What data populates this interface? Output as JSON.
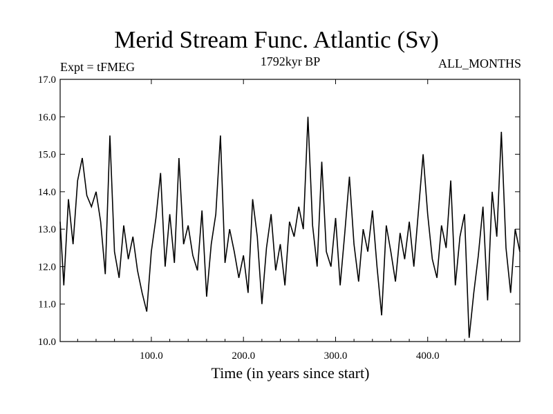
{
  "chart_data": {
    "type": "line",
    "title": "Merid Stream Func. Atlantic (Sv)",
    "subtitle_left": "Expt = tFMEG",
    "subtitle_center": "1792kyr BP",
    "subtitle_right": "ALL_MONTHS",
    "xlabel": "Time (in years since start)",
    "ylabel": "",
    "xlim": [
      1,
      500
    ],
    "ylim": [
      10.0,
      17.0
    ],
    "xticks": [
      100,
      200,
      300,
      400
    ],
    "xtick_labels": [
      "100.0",
      "200.0",
      "300.0",
      "400.0"
    ],
    "yticks": [
      10,
      11,
      12,
      13,
      14,
      15,
      16,
      17
    ],
    "ytick_labels": [
      "10.0",
      "11.0",
      "12.0",
      "13.0",
      "14.0",
      "15.0",
      "16.0",
      "17.0"
    ],
    "series": [
      {
        "name": "Merid Stream Func. Atlantic",
        "color": "#000000",
        "x": [
          1,
          5,
          10,
          15,
          20,
          25,
          30,
          35,
          40,
          45,
          50,
          55,
          60,
          65,
          70,
          75,
          80,
          85,
          90,
          95,
          100,
          105,
          110,
          115,
          120,
          125,
          130,
          135,
          140,
          145,
          150,
          155,
          160,
          165,
          170,
          175,
          180,
          185,
          190,
          195,
          200,
          205,
          210,
          215,
          220,
          225,
          230,
          235,
          240,
          245,
          250,
          255,
          260,
          265,
          270,
          275,
          280,
          285,
          290,
          295,
          300,
          305,
          310,
          315,
          320,
          325,
          330,
          335,
          340,
          345,
          350,
          355,
          360,
          365,
          370,
          375,
          380,
          385,
          390,
          395,
          400,
          405,
          410,
          415,
          420,
          425,
          430,
          435,
          440,
          445,
          450,
          455,
          460,
          465,
          470,
          475,
          480,
          485,
          490,
          495,
          500
        ],
        "values": [
          13.2,
          11.5,
          13.8,
          12.6,
          14.3,
          14.9,
          13.9,
          13.6,
          14.0,
          13.2,
          11.8,
          15.5,
          12.4,
          11.7,
          13.1,
          12.2,
          12.8,
          11.9,
          11.3,
          10.8,
          12.4,
          13.3,
          14.5,
          12.0,
          13.4,
          12.1,
          14.9,
          12.6,
          13.1,
          12.3,
          11.9,
          13.5,
          11.2,
          12.6,
          13.4,
          15.5,
          12.1,
          13.0,
          12.4,
          11.7,
          12.3,
          11.3,
          13.8,
          12.8,
          11.0,
          12.5,
          13.4,
          11.9,
          12.6,
          11.5,
          13.2,
          12.8,
          13.6,
          13.0,
          16.0,
          13.1,
          12.0,
          14.8,
          12.4,
          12.0,
          13.3,
          11.5,
          12.9,
          14.4,
          12.6,
          11.6,
          13.0,
          12.4,
          13.5,
          12.0,
          10.7,
          13.1,
          12.4,
          11.6,
          12.9,
          12.2,
          13.2,
          12.0,
          13.5,
          15.0,
          13.4,
          12.2,
          11.7,
          13.1,
          12.5,
          14.3,
          11.5,
          12.8,
          13.4,
          10.1,
          11.3,
          12.3,
          13.6,
          11.1,
          14.0,
          12.8,
          15.6,
          12.5,
          11.3,
          13.0,
          12.4
        ]
      }
    ]
  }
}
